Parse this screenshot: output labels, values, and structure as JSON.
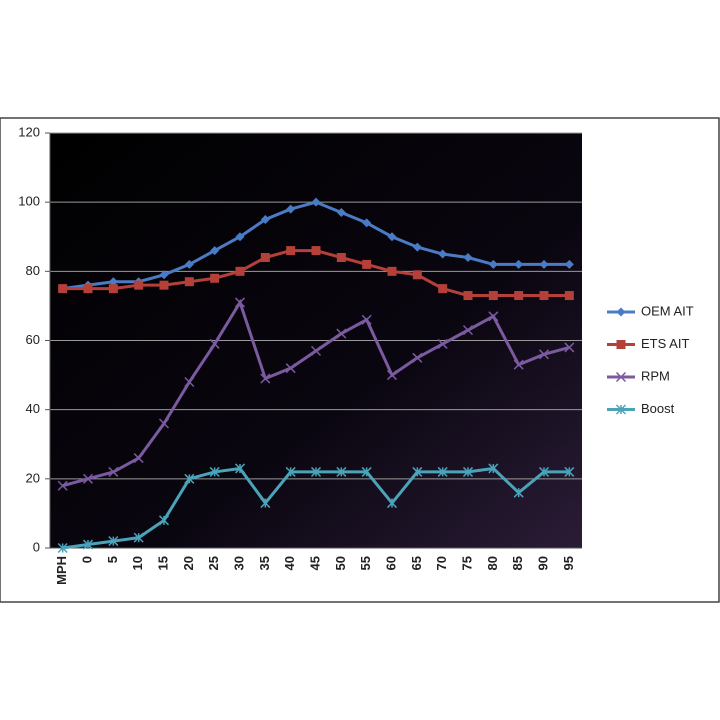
{
  "chart_data": {
    "type": "line",
    "categories": [
      "MPH",
      "0",
      "5",
      "10",
      "15",
      "20",
      "25",
      "30",
      "35",
      "40",
      "45",
      "50",
      "55",
      "60",
      "65",
      "70",
      "75",
      "80",
      "85",
      "90",
      "95"
    ],
    "series": [
      {
        "name": "OEM AIT",
        "color": "#4a7cc6",
        "marker": "diamond",
        "values": [
          75,
          76,
          77,
          77,
          79,
          82,
          86,
          90,
          95,
          98,
          100,
          97,
          94,
          90,
          87,
          85,
          84,
          82,
          82,
          82,
          82
        ]
      },
      {
        "name": "ETS AIT",
        "color": "#b5403a",
        "marker": "square",
        "values": [
          75,
          75,
          75,
          76,
          76,
          77,
          78,
          80,
          84,
          86,
          86,
          84,
          82,
          80,
          79,
          75,
          73,
          73,
          73,
          73,
          73
        ]
      },
      {
        "name": "RPM",
        "color": "#7b5aa0",
        "marker": "x",
        "values": [
          18,
          20,
          22,
          26,
          36,
          48,
          59,
          71,
          49,
          52,
          57,
          62,
          66,
          50,
          55,
          59,
          63,
          67,
          53,
          56,
          58
        ]
      },
      {
        "name": "Boost",
        "color": "#4aa3b8",
        "marker": "star",
        "values": [
          0,
          1,
          2,
          3,
          8,
          20,
          22,
          23,
          13,
          22,
          22,
          22,
          22,
          13,
          22,
          22,
          22,
          23,
          16,
          22,
          22
        ]
      }
    ],
    "ylim": [
      0,
      120
    ],
    "yticks": [
      0,
      20,
      40,
      60,
      80,
      100,
      120
    ],
    "grid": true,
    "legend": "right"
  }
}
